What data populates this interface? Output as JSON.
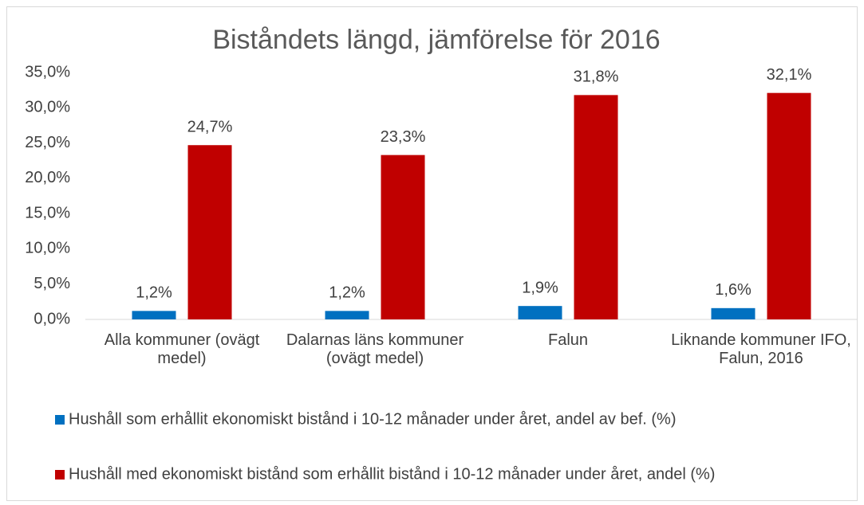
{
  "chart_data": {
    "type": "bar",
    "title": "Biståndets längd, jämförelse för 2016",
    "categories": [
      "Alla kommuner (ovägt medel)",
      "Dalarnas läns kommuner (ovägt medel)",
      "Falun",
      "Liknande kommuner IFO, Falun, 2016"
    ],
    "series": [
      {
        "name": "Hushåll som erhållit ekonomiskt bistånd i 10-12 månader under året, andel  av bef. (%)",
        "color": "#0070c0",
        "values": [
          1.2,
          1.2,
          1.9,
          1.6
        ],
        "value_labels": [
          "1,2%",
          "1,2%",
          "1,9%",
          "1,6%"
        ]
      },
      {
        "name": "Hushåll med ekonomiskt bistånd som erhållit bistånd i 10-12 månader under året, andel (%)",
        "color": "#c00000",
        "values": [
          24.7,
          23.3,
          31.8,
          32.1
        ],
        "value_labels": [
          "24,7%",
          "23,3%",
          "31,8%",
          "32,1%"
        ]
      }
    ],
    "ylim": [
      0,
      35
    ],
    "yticks": [
      {
        "value": 0,
        "label": "0,0%"
      },
      {
        "value": 5,
        "label": "5,0%"
      },
      {
        "value": 10,
        "label": "10,0%"
      },
      {
        "value": 15,
        "label": "15,0%"
      },
      {
        "value": 20,
        "label": "20,0%"
      },
      {
        "value": 25,
        "label": "25,0%"
      },
      {
        "value": 30,
        "label": "30,0%"
      },
      {
        "value": 35,
        "label": "35,0%"
      }
    ],
    "grid": false,
    "legend": "bottom"
  }
}
